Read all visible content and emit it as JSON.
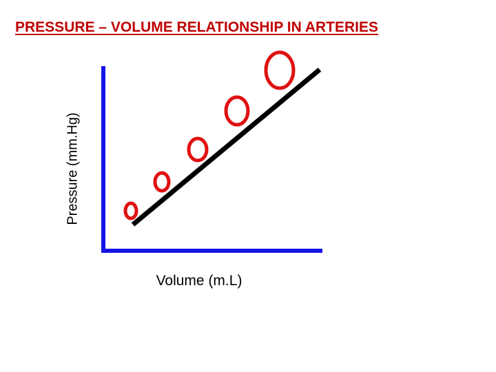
{
  "title": "PRESSURE – VOLUME RELATIONSHIP IN ARTERIES",
  "y_axis_label": "Pressure (mm.Hg)",
  "x_axis_label": "Volume (m.L)",
  "colors": {
    "title": "#c00000",
    "axes": "#1414e6",
    "line": "#000000",
    "artery_rings": "#e01010"
  },
  "artery_count": 5
}
